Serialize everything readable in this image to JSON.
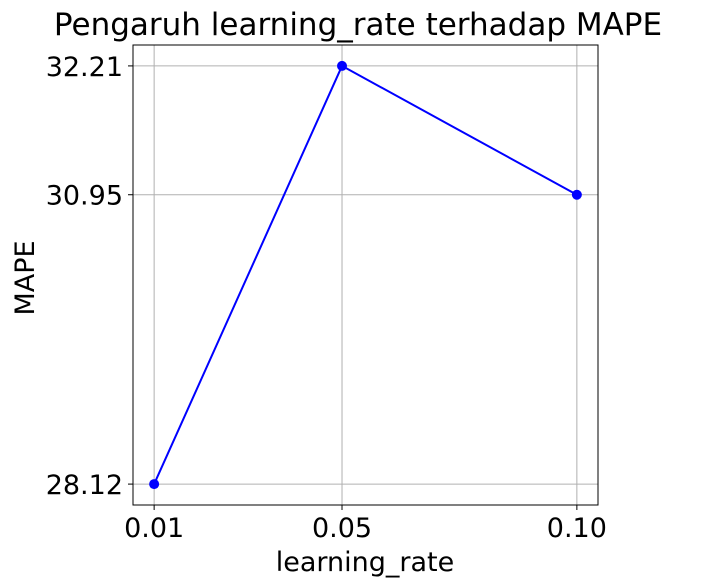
{
  "chart_data": {
    "type": "line",
    "title": "Pengaruh learning_rate terhadap MAPE",
    "xlabel": "learning_rate",
    "ylabel": "MAPE",
    "x": [
      0.01,
      0.05,
      0.1
    ],
    "x_tick_labels": [
      "0.01",
      "0.05",
      "0.10"
    ],
    "y_ticks": [
      28.12,
      30.95,
      32.21
    ],
    "y_tick_labels": [
      "28.12",
      "30.95",
      "32.21"
    ],
    "series": [
      {
        "values": [
          28.12,
          32.21,
          30.95
        ],
        "color": "#0000ff",
        "marker": "circle"
      }
    ],
    "xlim": [
      0.0055,
      0.1045
    ],
    "ylim": [
      27.9155,
      32.4145
    ],
    "grid": true,
    "legend": "none"
  }
}
